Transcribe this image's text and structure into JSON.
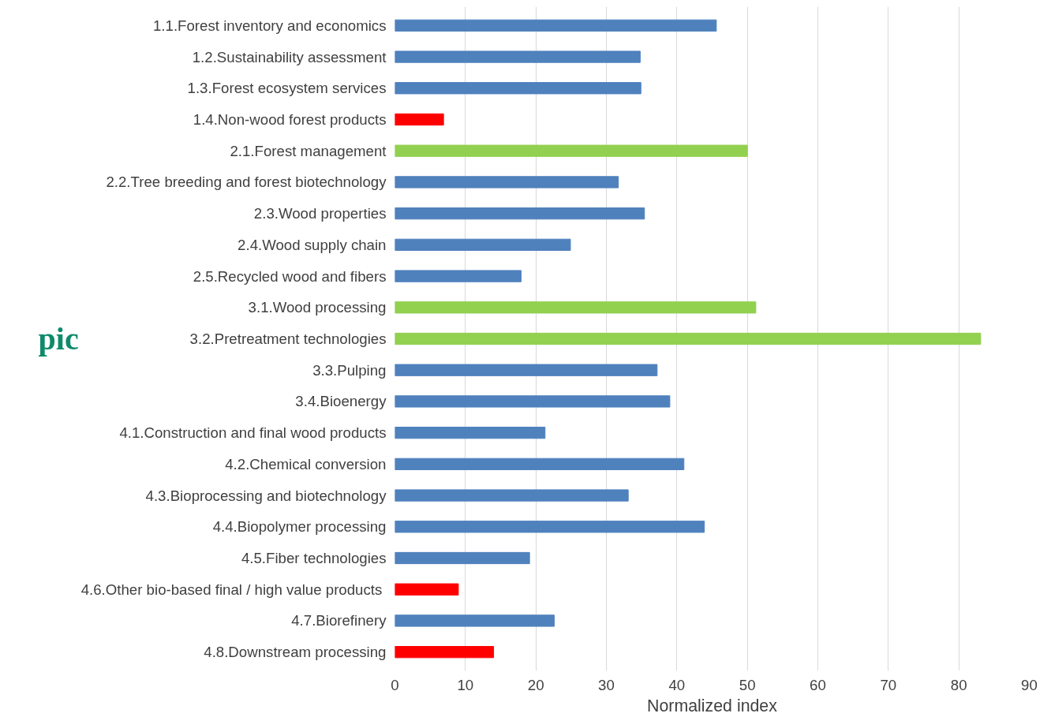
{
  "chart_data": {
    "type": "bar",
    "orientation": "horizontal",
    "xlabel": "Normalized index",
    "ylabel": "pic",
    "categories": [
      "1.1.Forest inventory and economics",
      "1.2.Sustainability assessment",
      "1.3.Forest ecosystem services",
      "1.4.Non-wood forest products",
      "2.1.Forest management",
      "2.2.Tree breeding and forest biotechnology",
      "2.3.Wood properties",
      "2.4.Wood supply chain",
      "2.5.Recycled wood and fibers",
      "3.1.Wood processing",
      "3.2.Pretreatment technologies",
      "3.3.Pulping",
      "3.4.Bioenergy",
      "4.1.Construction and final wood products",
      "4.2.Chemical conversion",
      "4.3.Bioprocessing and biotechnology",
      "4.4.Biopolymer processing",
      "4.5.Fiber technologies",
      "4.6.Other bio-based final / high value  products",
      "4.7.Biorefinery",
      "4.8.Downstream processing"
    ],
    "values": [
      45.6,
      34.8,
      34.9,
      6.9,
      50,
      31.7,
      35.4,
      24.9,
      17.9,
      51.2,
      83.1,
      37.2,
      39.0,
      21.3,
      41.0,
      33.1,
      43.9,
      19.1,
      9.0,
      22.6,
      14.0
    ],
    "colors": [
      "#4f81bd",
      "#4f81bd",
      "#4f81bd",
      "#ff0000",
      "#92d050",
      "#4f81bd",
      "#4f81bd",
      "#4f81bd",
      "#4f81bd",
      "#92d050",
      "#92d050",
      "#4f81bd",
      "#4f81bd",
      "#4f81bd",
      "#4f81bd",
      "#4f81bd",
      "#4f81bd",
      "#4f81bd",
      "#ff0000",
      "#4f81bd",
      "#ff0000"
    ],
    "xlim": [
      0,
      90
    ],
    "xticks": [
      0,
      10,
      20,
      30,
      40,
      50,
      60,
      70,
      80,
      90
    ],
    "grid": "x"
  }
}
